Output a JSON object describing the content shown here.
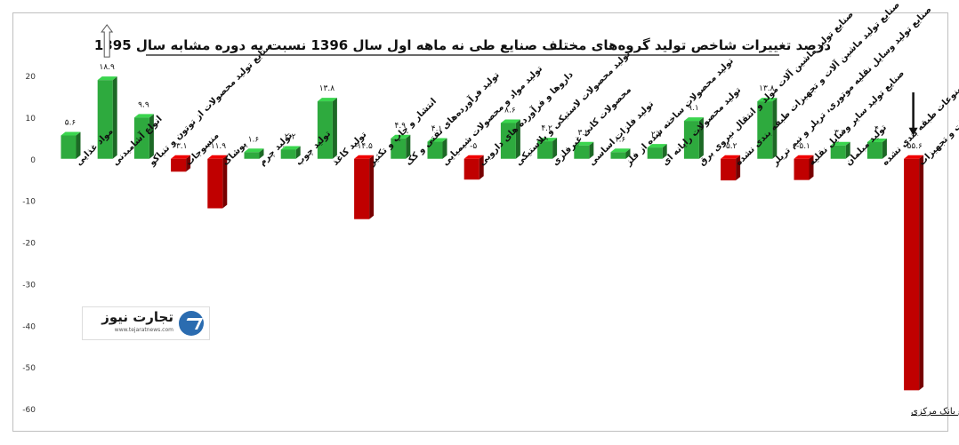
{
  "chart_data": {
    "type": "bar",
    "title": "درصد تغییرات شاخص تولید گروه‌های مختلف صنایع طی نه ماهه اول سال 1396 نسبت به دوره مشابه سال 1395",
    "xlabel": "",
    "ylabel": "",
    "ylim": [
      -60,
      20
    ],
    "yticks": [
      20,
      10,
      0,
      -10,
      -20,
      -30,
      -40,
      -50,
      -60
    ],
    "grid": false,
    "colors": {
      "positive": "#2eaa3e",
      "negative": "#c00000"
    },
    "categories": [
      "مواد غذایی",
      "انواع آشامیدنی",
      "صنایع تولید محصولات از توتون و تنباکو",
      "منسوجات",
      "پوشاک",
      "تولید چرم",
      "تولید چوب",
      "تولید کاغذ",
      "انتشار و چاپ و تکثیر",
      "تولید فرآورده‌های نفتی و کک",
      "تولید مواد و محصولات شیمیایی",
      "داروها و فرآورده های دارویی",
      "تولید محصولات لاستیکی و پلاستیکی",
      "محصولات کانی غیرفلزی",
      "تولید فلزات اساسی",
      "تولید محصولات ساخته شده از فلز",
      "تولید محصولات رایانه ای",
      "صنایع تولید ماشین آلات مولد و انتقال نیروی برق",
      "صنایع تولید ماشین آلات و تجهیزات طبقه بندی نشده",
      "صنایع تولید وسایل نقلیه موتوری، تریلر و نیم تریلر",
      "صنایع تولید سایر وسایل نقلیه",
      "تولید مبلمان",
      "تولید سایر مصنوعات طبقه بندی نشده",
      "تعمیر و نصب ماشین آلات و تجهیزات"
    ],
    "values": [
      5.6,
      18.9,
      9.9,
      -3.1,
      -11.9,
      1.6,
      2.2,
      13.8,
      -14.5,
      4.9,
      4.1,
      -5,
      8.6,
      4.2,
      3.2,
      1.6,
      2.7,
      9.1,
      -5.2,
      13.8,
      -5.1,
      3.2,
      4,
      -55.6
    ],
    "value_labels": [
      "۵.۶",
      "۱۸.۹",
      "۹.۹",
      "-۳.۱",
      "-۱۱.۹",
      "۱.۶",
      "۲.۲",
      "۱۳.۸",
      "-۱۴.۵",
      "۴.۹",
      "۴.۱",
      "-۵",
      "۸.۶",
      "۴.۲",
      "۳.۲",
      "۱.۶",
      "۲.۷",
      "۹.۱",
      "-۵.۲",
      "۱۳.۸",
      "-۵.۱",
      "۳.۲",
      "۴",
      "-۵۵.۶"
    ],
    "arrows": [
      {
        "category_index": 1,
        "direction": "up",
        "style": "outline"
      },
      {
        "category_index": 23,
        "direction": "down",
        "style": "solid"
      }
    ],
    "source": "منبع بانک مرکزی"
  },
  "logo": {
    "name": "تجارت نیوز",
    "url": "www.tejaratnews.com"
  }
}
